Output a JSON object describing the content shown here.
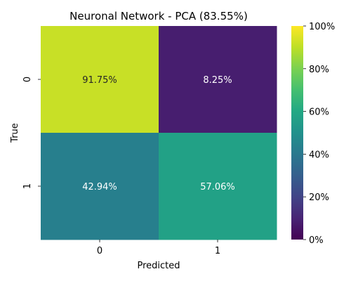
{
  "chart_data": {
    "type": "heatmap",
    "title": "Neuronal Network - PCA (83.55%)",
    "xlabel": "Predicted",
    "ylabel": "True",
    "x_categories": [
      "0",
      "1"
    ],
    "y_categories": [
      "0",
      "1"
    ],
    "values": [
      [
        91.75,
        8.25
      ],
      [
        42.94,
        57.06
      ]
    ],
    "cell_labels": [
      [
        "91.75%",
        "8.25%"
      ],
      [
        "42.94%",
        "57.06%"
      ]
    ],
    "colorbar": {
      "colormap": "viridis",
      "range": [
        0,
        100
      ],
      "ticks": [
        0,
        20,
        40,
        60,
        80,
        100
      ],
      "tick_labels": [
        "0%",
        "20%",
        "40%",
        "60%",
        "80%",
        "100%"
      ]
    }
  }
}
